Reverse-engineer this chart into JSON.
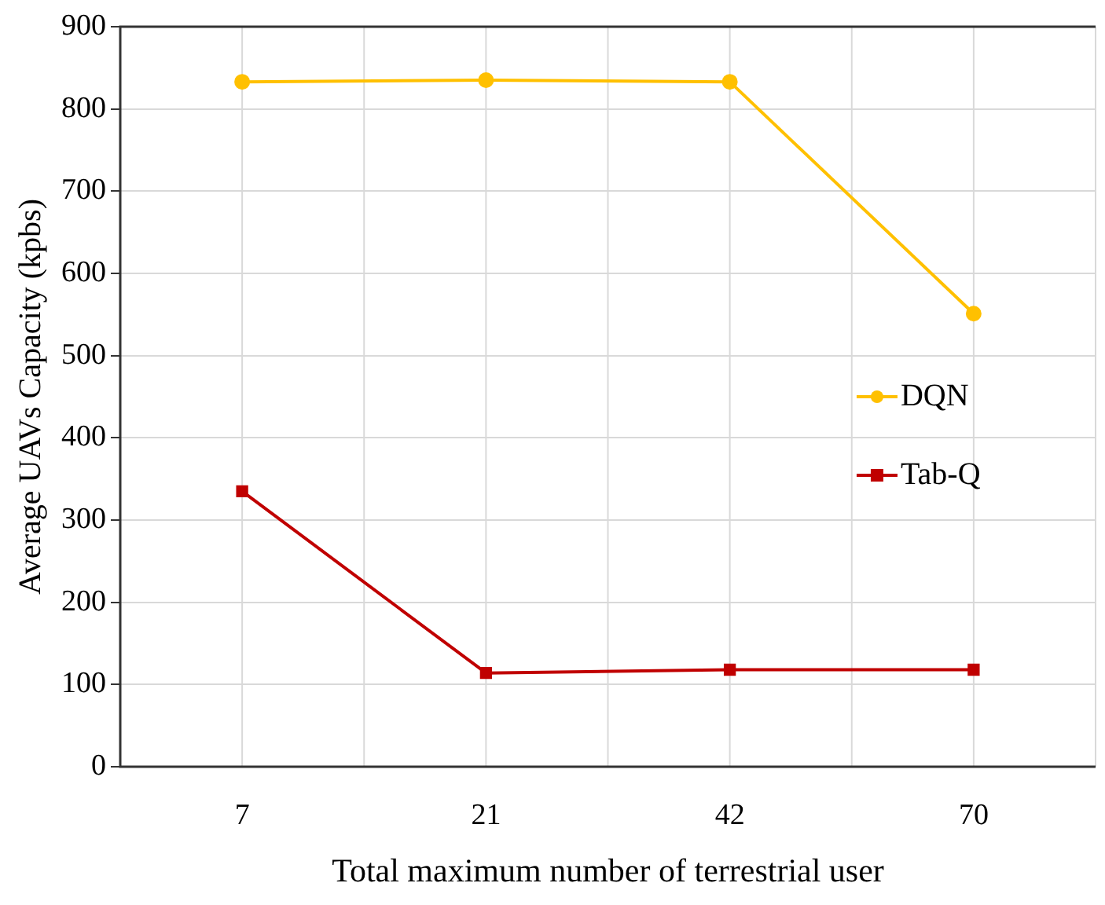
{
  "chart_data": {
    "type": "line",
    "xlabel": "Total maximum number of terrestrial user",
    "ylabel": "Average UAVs Capacity (kpbs)",
    "categories": [
      "7",
      "21",
      "42",
      "70"
    ],
    "series": [
      {
        "name": "DQN",
        "color": "#ffc000",
        "marker": "circle",
        "values": [
          833,
          835,
          833,
          551
        ]
      },
      {
        "name": "Tab-Q",
        "color": "#c00000",
        "marker": "square",
        "values": [
          335,
          114,
          118,
          118
        ]
      }
    ],
    "ylim": [
      0,
      900
    ],
    "yticks": [
      0,
      100,
      200,
      300,
      400,
      500,
      600,
      700,
      800,
      900
    ],
    "grid": true,
    "legend": "right"
  }
}
